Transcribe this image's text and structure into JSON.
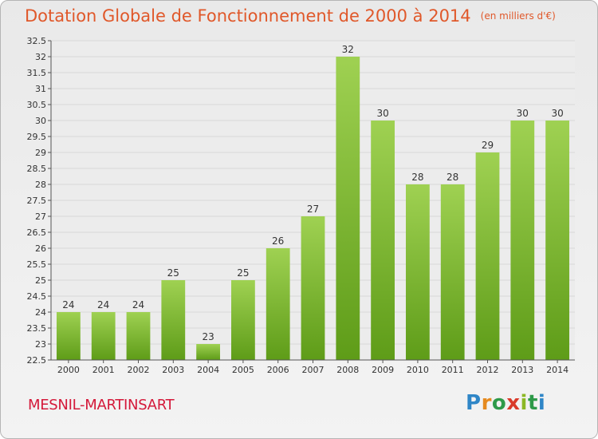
{
  "header": {
    "title": "Dotation Globale de Fonctionnement de 2000 à 2014",
    "subtitle": "(en milliers d'€)"
  },
  "footer": {
    "commune": "MESNIL-MARTINSART",
    "logo_text": "Proxiti"
  },
  "colors": {
    "bar_light": "#9fd152",
    "bar_dark": "#5e9c18",
    "title": "#e0582a",
    "commune": "#d4193a"
  },
  "chart_data": {
    "type": "bar",
    "title": "Dotation Globale de Fonctionnement de 2000 à 2014",
    "subtitle": "(en milliers d'€)",
    "categories": [
      "2000",
      "2001",
      "2002",
      "2003",
      "2004",
      "2005",
      "2006",
      "2007",
      "2008",
      "2009",
      "2010",
      "2011",
      "2012",
      "2013",
      "2014"
    ],
    "values": [
      24,
      24,
      24,
      25,
      23,
      25,
      26,
      27,
      32,
      30,
      28,
      28,
      29,
      30,
      30
    ],
    "data_labels": [
      "24",
      "24",
      "24",
      "25",
      "23",
      "25",
      "26",
      "27",
      "32",
      "30",
      "28",
      "28",
      "29",
      "30",
      "30"
    ],
    "ylim": [
      22.5,
      32.5
    ],
    "yticks": [
      "22.5",
      "23",
      "23.5",
      "24",
      "24.5",
      "25",
      "25.5",
      "26",
      "26.5",
      "27",
      "27.5",
      "28",
      "28.5",
      "29",
      "29.5",
      "30",
      "30.5",
      "31",
      "31.5",
      "32",
      "32.5"
    ],
    "grid": true,
    "xlabel": "",
    "ylabel": ""
  }
}
